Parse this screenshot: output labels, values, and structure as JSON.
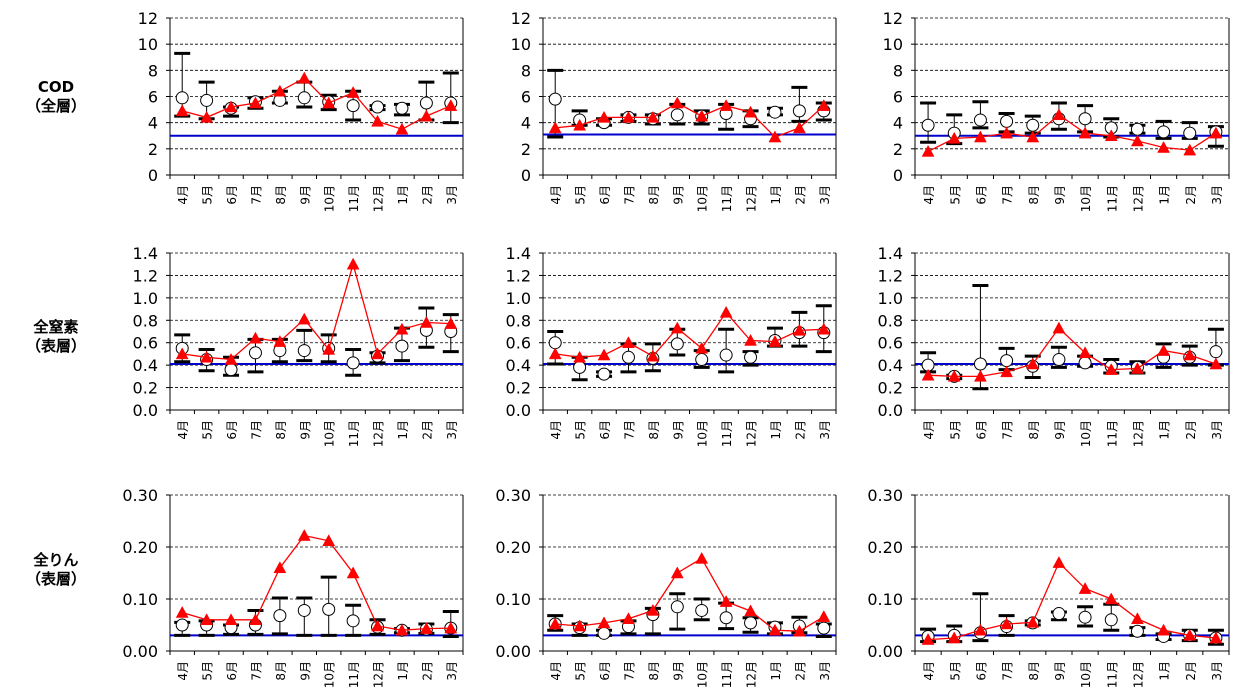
{
  "row_labels": [
    {
      "line1": "COD",
      "line2": "（全層）"
    },
    {
      "line1": "全窒素",
      "line2": "（表層）"
    },
    {
      "line1": "全りん",
      "line2": "（表層）"
    }
  ],
  "months": [
    "4月",
    "5月",
    "6月",
    "7月",
    "8月",
    "9月",
    "10月",
    "11月",
    "12月",
    "1月",
    "2月",
    "3月"
  ],
  "colors": {
    "triangle_line": "#ff0000",
    "reference_line": "#0000cc",
    "grid": "#000000"
  },
  "chart_data": [
    {
      "type": "line",
      "row": 0,
      "col": 0,
      "ylim": [
        0,
        12
      ],
      "yticks": [
        "0",
        "2",
        "4",
        "6",
        "8",
        "10",
        "12"
      ],
      "reference": 3.0,
      "series": [
        {
          "values": [
            4.9,
            4.4,
            5.2,
            5.5,
            6.4,
            7.4,
            5.5,
            6.3,
            4.1,
            3.5,
            4.5,
            5.3
          ]
        }
      ],
      "circles": [
        5.9,
        5.7,
        5.1,
        5.6,
        5.7,
        5.9,
        5.6,
        5.3,
        5.2,
        5.1,
        5.5,
        5.5
      ],
      "err_hi": [
        9.3,
        7.1,
        5.2,
        5.9,
        6.4,
        7.1,
        6.1,
        6.4,
        5.3,
        5.4,
        7.1,
        7.8
      ],
      "err_lo": [
        4.5,
        4.3,
        4.5,
        5.1,
        5.5,
        5.2,
        5.0,
        4.2,
        5.0,
        4.6,
        4.2,
        4.0
      ]
    },
    {
      "type": "line",
      "row": 0,
      "col": 1,
      "ylim": [
        0,
        12
      ],
      "yticks": [
        "0",
        "2",
        "4",
        "6",
        "8",
        "10",
        "12"
      ],
      "reference": 3.1,
      "series": [
        {
          "values": [
            3.6,
            3.8,
            4.4,
            4.4,
            4.4,
            5.5,
            4.5,
            5.3,
            4.8,
            2.9,
            3.6,
            5.3
          ]
        }
      ],
      "circles": [
        5.8,
        4.2,
        4.0,
        4.4,
        4.3,
        4.6,
        4.5,
        4.7,
        4.3,
        4.8,
        4.9,
        4.9
      ],
      "err_hi": [
        8.0,
        4.9,
        4.3,
        4.6,
        4.6,
        5.4,
        4.9,
        5.4,
        4.9,
        5.1,
        6.7,
        5.5
      ],
      "err_lo": [
        2.9,
        3.8,
        3.8,
        4.1,
        3.9,
        3.9,
        3.9,
        3.5,
        3.7,
        4.6,
        4.1,
        4.2
      ]
    },
    {
      "type": "line",
      "row": 0,
      "col": 2,
      "ylim": [
        0,
        12
      ],
      "yticks": [
        "0",
        "2",
        "4",
        "6",
        "8",
        "10",
        "12"
      ],
      "reference": 3.0,
      "series": [
        {
          "values": [
            1.8,
            2.8,
            2.9,
            3.2,
            2.9,
            4.6,
            3.2,
            3.0,
            2.6,
            2.1,
            1.9,
            3.2
          ]
        }
      ],
      "circles": [
        3.8,
        3.2,
        4.2,
        4.1,
        3.8,
        4.3,
        4.3,
        3.6,
        3.5,
        3.3,
        3.2,
        3.3
      ],
      "err_hi": [
        5.5,
        4.6,
        5.6,
        4.7,
        4.5,
        5.5,
        5.3,
        4.3,
        3.8,
        4.1,
        4.0,
        3.7
      ],
      "err_lo": [
        2.5,
        2.4,
        3.6,
        3.3,
        3.2,
        3.5,
        3.3,
        2.9,
        3.2,
        2.8,
        2.8,
        2.2
      ]
    },
    {
      "type": "line",
      "row": 1,
      "col": 0,
      "ylim": [
        0,
        1.4
      ],
      "yticks": [
        "0.0",
        "0.2",
        "0.4",
        "0.6",
        "0.8",
        "1.0",
        "1.2",
        "1.4"
      ],
      "reference": 0.41,
      "series": [
        {
          "values": [
            0.5,
            0.47,
            0.45,
            0.64,
            0.61,
            0.81,
            0.54,
            1.3,
            0.5,
            0.72,
            0.78,
            0.77
          ]
        }
      ],
      "circles": [
        0.55,
        0.45,
        0.36,
        0.51,
        0.53,
        0.53,
        0.55,
        0.42,
        0.48,
        0.57,
        0.71,
        0.7
      ],
      "err_hi": [
        0.67,
        0.54,
        0.47,
        0.63,
        0.63,
        0.71,
        0.67,
        0.54,
        0.51,
        0.73,
        0.91,
        0.85
      ],
      "err_lo": [
        0.43,
        0.35,
        0.31,
        0.34,
        0.43,
        0.44,
        0.43,
        0.31,
        0.42,
        0.44,
        0.56,
        0.52
      ]
    },
    {
      "type": "line",
      "row": 1,
      "col": 1,
      "ylim": [
        0,
        1.4
      ],
      "yticks": [
        "0.0",
        "0.2",
        "0.4",
        "0.6",
        "0.8",
        "1.0",
        "1.2",
        "1.4"
      ],
      "reference": 0.41,
      "series": [
        {
          "values": [
            0.5,
            0.47,
            0.49,
            0.6,
            0.48,
            0.73,
            0.55,
            0.87,
            0.62,
            0.61,
            0.71,
            0.72
          ]
        }
      ],
      "circles": [
        0.6,
        0.38,
        0.32,
        0.47,
        0.46,
        0.59,
        0.45,
        0.49,
        0.47,
        0.62,
        0.69,
        0.69
      ],
      "err_hi": [
        0.7,
        0.47,
        0.34,
        0.59,
        0.59,
        0.72,
        0.53,
        0.72,
        0.52,
        0.73,
        0.87,
        0.93
      ],
      "err_lo": [
        0.41,
        0.27,
        0.3,
        0.34,
        0.35,
        0.49,
        0.38,
        0.34,
        0.4,
        0.57,
        0.57,
        0.52
      ]
    },
    {
      "type": "line",
      "row": 1,
      "col": 2,
      "ylim": [
        0,
        1.4
      ],
      "yticks": [
        "0.0",
        "0.2",
        "0.4",
        "0.6",
        "0.8",
        "1.0",
        "1.2",
        "1.4"
      ],
      "reference": 0.41,
      "series": [
        {
          "values": [
            0.31,
            0.3,
            0.3,
            0.34,
            0.41,
            0.73,
            0.51,
            0.36,
            0.37,
            0.53,
            0.49,
            0.41
          ]
        }
      ],
      "circles": [
        0.4,
        0.3,
        0.41,
        0.44,
        0.39,
        0.45,
        0.42,
        0.39,
        0.38,
        0.47,
        0.47,
        0.52
      ],
      "err_hi": [
        0.51,
        0.31,
        1.11,
        0.55,
        0.48,
        0.56,
        0.48,
        0.45,
        0.43,
        0.59,
        0.57,
        0.72
      ],
      "err_lo": [
        0.34,
        0.28,
        0.19,
        0.36,
        0.29,
        0.38,
        0.39,
        0.33,
        0.33,
        0.38,
        0.4,
        0.4
      ]
    },
    {
      "type": "line",
      "row": 2,
      "col": 0,
      "ylim": [
        0,
        0.3
      ],
      "yticks": [
        "0.00",
        "0.10",
        "0.20",
        "0.30"
      ],
      "reference": 0.03,
      "series": [
        {
          "values": [
            0.074,
            0.06,
            0.06,
            0.06,
            0.16,
            0.222,
            0.212,
            0.15,
            0.048,
            0.04,
            0.043,
            0.044
          ]
        }
      ],
      "circles": [
        0.05,
        0.05,
        0.045,
        0.05,
        0.068,
        0.078,
        0.08,
        0.058,
        0.046,
        0.04,
        0.042,
        0.044
      ],
      "err_hi": [
        0.055,
        0.058,
        0.05,
        0.078,
        0.102,
        0.102,
        0.142,
        0.088,
        0.06,
        0.043,
        0.052,
        0.076
      ],
      "err_lo": [
        0.03,
        0.03,
        0.032,
        0.032,
        0.033,
        0.03,
        0.03,
        0.03,
        0.032,
        0.035,
        0.034,
        0.028
      ]
    },
    {
      "type": "line",
      "row": 2,
      "col": 1,
      "ylim": [
        0,
        0.3
      ],
      "yticks": [
        "0.00",
        "0.10",
        "0.20",
        "0.30"
      ],
      "reference": 0.03,
      "series": [
        {
          "values": [
            0.052,
            0.048,
            0.054,
            0.062,
            0.078,
            0.15,
            0.178,
            0.095,
            0.077,
            0.04,
            0.038,
            0.066
          ]
        }
      ],
      "circles": [
        0.052,
        0.045,
        0.034,
        0.047,
        0.07,
        0.085,
        0.078,
        0.064,
        0.054,
        0.046,
        0.048,
        0.044
      ],
      "err_hi": [
        0.068,
        0.052,
        0.04,
        0.058,
        0.082,
        0.11,
        0.1,
        0.092,
        0.064,
        0.054,
        0.065,
        0.052
      ],
      "err_lo": [
        0.04,
        0.03,
        0.03,
        0.033,
        0.033,
        0.042,
        0.06,
        0.043,
        0.036,
        0.033,
        0.035,
        0.028
      ]
    },
    {
      "type": "line",
      "row": 2,
      "col": 2,
      "ylim": [
        0,
        0.3
      ],
      "yticks": [
        "0.00",
        "0.10",
        "0.20",
        "0.30"
      ],
      "reference": 0.03,
      "series": [
        {
          "values": [
            0.022,
            0.025,
            0.04,
            0.052,
            0.055,
            0.17,
            0.12,
            0.1,
            0.062,
            0.04,
            0.03,
            0.025
          ]
        }
      ],
      "circles": [
        0.028,
        0.03,
        0.035,
        0.047,
        0.054,
        0.072,
        0.065,
        0.06,
        0.038,
        0.028,
        0.03,
        0.025
      ],
      "err_hi": [
        0.042,
        0.048,
        0.11,
        0.068,
        0.058,
        0.075,
        0.085,
        0.09,
        0.045,
        0.033,
        0.04,
        0.04
      ],
      "err_lo": [
        0.018,
        0.018,
        0.02,
        0.03,
        0.05,
        0.06,
        0.048,
        0.04,
        0.03,
        0.022,
        0.02,
        0.013
      ]
    }
  ]
}
